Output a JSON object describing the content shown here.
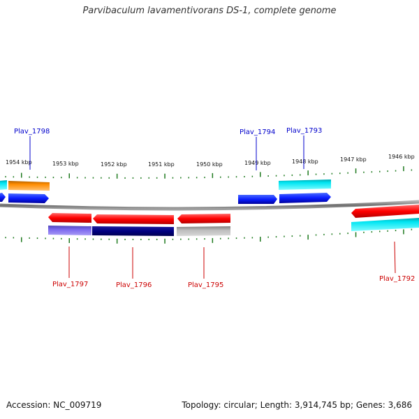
{
  "title": "Parvibaculum lavamentivorans DS-1, complete genome",
  "footer": {
    "accession": "Accession: NC_009719",
    "topology": "Topology: circular; Length: 3,914,745 bp; Genes: 3,686"
  },
  "colors": {
    "backbone": "#888888",
    "tick": "#1f7a1f",
    "label_top": "#0000cc",
    "label_bottom": "#cc0000"
  },
  "kbp_ticks": [
    "1954 kbp",
    "1953 kbp",
    "1952 kbp",
    "1951 kbp",
    "1950 kbp",
    "1949 kbp",
    "1948 kbp",
    "1947 kbp",
    "1946 kbp"
  ],
  "gene_labels_top": [
    "Plav_1798",
    "Plav_1794",
    "Plav_1793"
  ],
  "gene_labels_bottom": [
    "Plav_1797",
    "Plav_1796",
    "Plav_1795",
    "Plav_1792"
  ]
}
